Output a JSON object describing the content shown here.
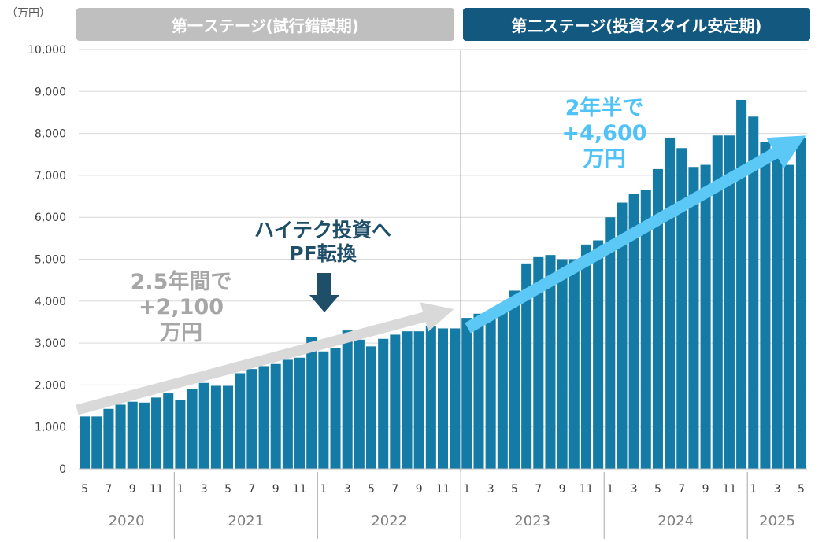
{
  "unit_label": "（万円）",
  "stages": {
    "stage1": "第一ステージ(試行錯誤期)",
    "stage2": "第二ステージ(投資スタイル安定期)"
  },
  "annotations": {
    "stage1_line1": "2.5年間で",
    "stage1_line2": "+2,100",
    "stage1_line3": "万円",
    "pf_line1": "ハイテク投資へ",
    "pf_line2": "PF転換",
    "stage2_line1": "2年半で",
    "stage2_line2": "+4,600",
    "stage2_line3": "万円"
  },
  "colors": {
    "bar": "#137ba5",
    "stage1_banner": "#bfbfbf",
    "stage2_banner": "#13587e",
    "stage1_arrow": "#d9d9d9",
    "stage2_arrow": "#5bc8f5",
    "pf_arrow": "#1f4e69"
  },
  "chart_data": {
    "type": "bar",
    "ylim": [
      0,
      10000
    ],
    "yticks": [
      0,
      1000,
      2000,
      3000,
      4000,
      5000,
      6000,
      7000,
      8000,
      9000,
      10000
    ],
    "ytick_labels": [
      "0",
      "1,000",
      "2,000",
      "3,000",
      "4,000",
      "5,000",
      "6,000",
      "7,000",
      "8,000",
      "9,000",
      "10,000"
    ],
    "grid": true,
    "month_labels": [
      "5",
      "7",
      "9",
      "11",
      "1",
      "3",
      "5",
      "7",
      "9",
      "11",
      "1",
      "3",
      "5",
      "7",
      "9",
      "11",
      "1",
      "3",
      "5",
      "7",
      "9",
      "11",
      "1",
      "3",
      "5",
      "7",
      "9",
      "11",
      "1",
      "3",
      "5"
    ],
    "month_label_positions": [
      0,
      2,
      4,
      6,
      8,
      10,
      12,
      14,
      16,
      18,
      20,
      22,
      24,
      26,
      28,
      30,
      32,
      34,
      36,
      38,
      40,
      42,
      44,
      46,
      48,
      50,
      52,
      54,
      56,
      58,
      60
    ],
    "years": [
      "2020",
      "2021",
      "2022",
      "2023",
      "2024",
      "2025"
    ],
    "year_start_index": [
      0,
      8,
      20,
      32,
      44,
      56
    ],
    "year_end_index": [
      7,
      19,
      31,
      43,
      55,
      60
    ],
    "stage_divider_index": 32,
    "months": [
      "2020-05",
      "2020-06",
      "2020-07",
      "2020-08",
      "2020-09",
      "2020-10",
      "2020-11",
      "2020-12",
      "2021-01",
      "2021-02",
      "2021-03",
      "2021-04",
      "2021-05",
      "2021-06",
      "2021-07",
      "2021-08",
      "2021-09",
      "2021-10",
      "2021-11",
      "2021-12",
      "2022-01",
      "2022-02",
      "2022-03",
      "2022-04",
      "2022-05",
      "2022-06",
      "2022-07",
      "2022-08",
      "2022-09",
      "2022-10",
      "2022-11",
      "2022-12",
      "2023-01",
      "2023-02",
      "2023-03",
      "2023-04",
      "2023-05",
      "2023-06",
      "2023-07",
      "2023-08",
      "2023-09",
      "2023-10",
      "2023-11",
      "2023-12",
      "2024-01",
      "2024-02",
      "2024-03",
      "2024-04",
      "2024-05",
      "2024-06",
      "2024-07",
      "2024-08",
      "2024-09",
      "2024-10",
      "2024-11",
      "2024-12",
      "2025-01",
      "2025-02",
      "2025-03",
      "2025-04",
      "2025-05"
    ],
    "values": [
      1250,
      1250,
      1430,
      1530,
      1600,
      1580,
      1700,
      1800,
      1650,
      1900,
      2050,
      1980,
      1980,
      2280,
      2380,
      2450,
      2500,
      2600,
      2650,
      3150,
      2800,
      2880,
      3300,
      3080,
      2920,
      3100,
      3200,
      3280,
      3280,
      3400,
      3350,
      3350,
      3600,
      3700,
      3750,
      3900,
      4250,
      4900,
      5050,
      5100,
      5000,
      5000,
      5350,
      5450,
      6000,
      6350,
      6550,
      6650,
      7150,
      7900,
      7650,
      7200,
      7250,
      7950,
      7950,
      8800,
      8400,
      7800,
      7400,
      7250,
      7900
    ]
  }
}
